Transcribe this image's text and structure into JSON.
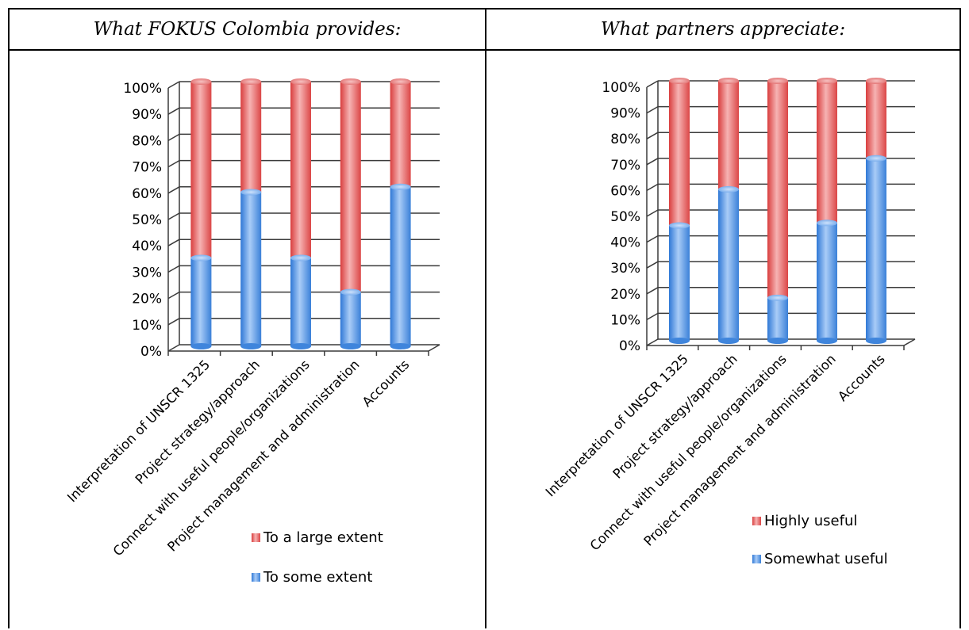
{
  "table": {
    "left_header": "What FOKUS Colombia provides:",
    "right_header": "What partners appreciate:"
  },
  "chart_data": [
    {
      "type": "bar",
      "stacked": true,
      "percent_stacked": true,
      "title": "",
      "categories": [
        "Interpretation of  UNSCR 1325",
        "Project strategy/approach",
        "Connect with useful people/organizations",
        "Project management and administration",
        "Accounts"
      ],
      "series": [
        {
          "name": "To  some extent",
          "values": [
            33,
            58,
            33,
            20,
            60
          ],
          "color": "#4a90e0"
        },
        {
          "name": "To a large extent",
          "values": [
            67,
            42,
            67,
            80,
            40
          ],
          "color": "#e05050"
        }
      ],
      "ylim": [
        0,
        100
      ],
      "yticks": [
        "0%",
        "10%",
        "20%",
        "30%",
        "40%",
        "50%",
        "60%",
        "70%",
        "80%",
        "90%",
        "100%"
      ],
      "grid": true,
      "legend_position": "bottom-right"
    },
    {
      "type": "bar",
      "stacked": true,
      "percent_stacked": true,
      "title": "",
      "categories": [
        "Interpretation of  UNSCR 1325",
        "Project strategy/approach",
        "Connect with useful people/organizations",
        "Project management and administration",
        "Accounts"
      ],
      "series": [
        {
          "name": "Somewhat useful",
          "values": [
            44,
            58,
            16,
            45,
            70
          ],
          "color": "#4a90e0"
        },
        {
          "name": "Highly useful",
          "values": [
            56,
            42,
            84,
            55,
            30
          ],
          "color": "#e05050"
        }
      ],
      "ylim": [
        0,
        100
      ],
      "yticks": [
        "0%",
        "10%",
        "20%",
        "30%",
        "40%",
        "50%",
        "60%",
        "70%",
        "80%",
        "90%",
        "100%"
      ],
      "grid": true,
      "legend_position": "bottom-right"
    }
  ]
}
